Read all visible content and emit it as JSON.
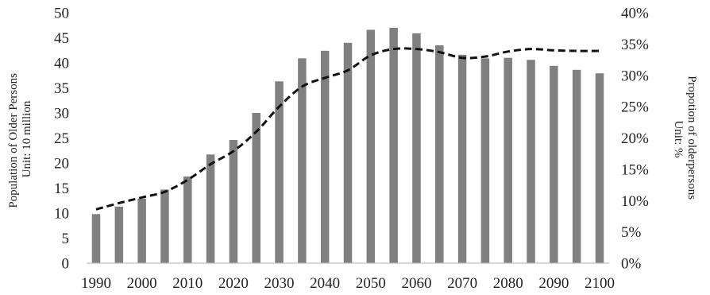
{
  "chart_data": {
    "type": "bar",
    "title": "",
    "x": [
      1990,
      1995,
      2000,
      2005,
      2010,
      2015,
      2020,
      2025,
      2030,
      2035,
      2040,
      2045,
      2050,
      2055,
      2060,
      2065,
      2070,
      2075,
      2080,
      2085,
      2090,
      2095,
      2100
    ],
    "x_tick_labels": [
      "1990",
      "2000",
      "2010",
      "2020",
      "2030",
      "2040",
      "2050",
      "2060",
      "2070",
      "2080",
      "2090",
      "2100"
    ],
    "series": [
      {
        "type": "bar",
        "axis": "left",
        "color": "#808080",
        "values": [
          9.8,
          11.3,
          12.9,
          14.7,
          17.3,
          21.7,
          24.6,
          30.0,
          36.3,
          40.9,
          42.4,
          44.0,
          46.6,
          47.0,
          45.9,
          43.5,
          41.6,
          40.9,
          41.0,
          40.6,
          39.4,
          38.6,
          37.9
        ]
      },
      {
        "type": "line",
        "axis": "right",
        "style": "dashed",
        "color": "#111111",
        "values": [
          8.6,
          9.6,
          10.5,
          11.4,
          13.3,
          15.8,
          17.9,
          21.0,
          25.0,
          28.2,
          29.6,
          30.8,
          33.2,
          34.2,
          34.2,
          33.7,
          32.8,
          33.0,
          33.8,
          34.2,
          34.0,
          33.9,
          33.9
        ]
      }
    ],
    "y_left": {
      "label_lines": [
        "Population of Older Persons",
        "Unit: 10 million"
      ],
      "ylim": [
        0,
        50
      ],
      "tick_labels": [
        "0",
        "5",
        "10",
        "15",
        "20",
        "25",
        "30",
        "35",
        "40",
        "45",
        "50"
      ]
    },
    "y_right": {
      "label_lines": [
        "Propotion of olderpersons",
        "Unit: %"
      ],
      "ylim": [
        0,
        40
      ],
      "tick_labels": [
        "0%",
        "5%",
        "10%",
        "15%",
        "20%",
        "25%",
        "30%",
        "35%",
        "40%"
      ]
    },
    "grid": false,
    "legend": "none",
    "colors": {
      "axis": "#bfbfbf",
      "text": "#222222",
      "bar": "#808080",
      "line": "#111111"
    }
  }
}
